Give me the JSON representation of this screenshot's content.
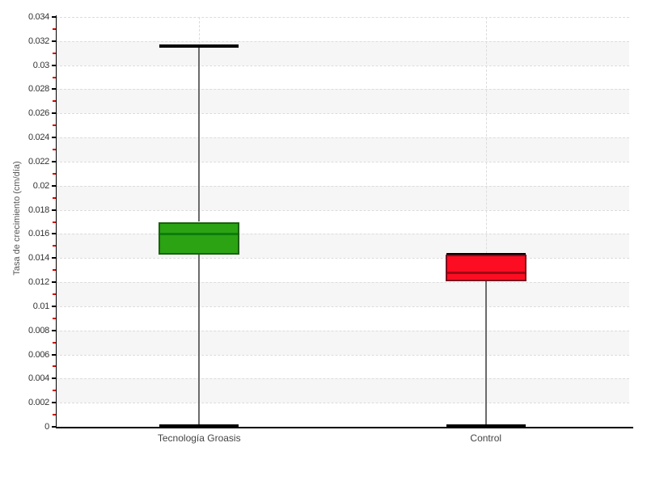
{
  "chart_data": {
    "type": "boxplot",
    "title": "",
    "xlabel": "",
    "ylabel": "Tasa de crecimiento (cm/día)",
    "ylim": [
      0,
      0.034
    ],
    "ytick_step": 0.002,
    "minor_tick_step": 0.001,
    "ytick_labels": [
      "0",
      "0.002",
      "0.004",
      "0.006",
      "0.008",
      "0.01",
      "0.012",
      "0.014",
      "0.016",
      "0.018",
      "0.02",
      "0.022",
      "0.024",
      "0.026",
      "0.028",
      "0.03",
      "0.032",
      "0.034"
    ],
    "grid": true,
    "legend_position": "none",
    "categories": [
      "Tecnología Groasis",
      "Control"
    ],
    "series": [
      {
        "name": "Tecnología Groasis",
        "min": 0.0001,
        "q1": 0.0143,
        "median": 0.016,
        "q3": 0.017,
        "max": 0.0316,
        "fill_color": "#2ba313",
        "border_color": "#1d5f12",
        "median_color": "#0e7d0b"
      },
      {
        "name": "Control",
        "min": 0.0001,
        "q1": 0.0121,
        "median": 0.0128,
        "q3": 0.0143,
        "max": 0.0143,
        "fill_color": "#fc0d22",
        "border_color": "#7a0f1e",
        "median_color": "#9e0a15"
      }
    ],
    "style_colors": {
      "plot_band": "#f6f6f6",
      "gridline": "#dcdcdc",
      "axis": "#000000",
      "major_tick": "#000000",
      "minor_tick": "#d40000",
      "whisker_stem": "#6b6b6b",
      "whisker_cap": "#000000",
      "tick_label": "#333333",
      "category_label": "#444444",
      "ylabel_color": "#555555"
    }
  }
}
